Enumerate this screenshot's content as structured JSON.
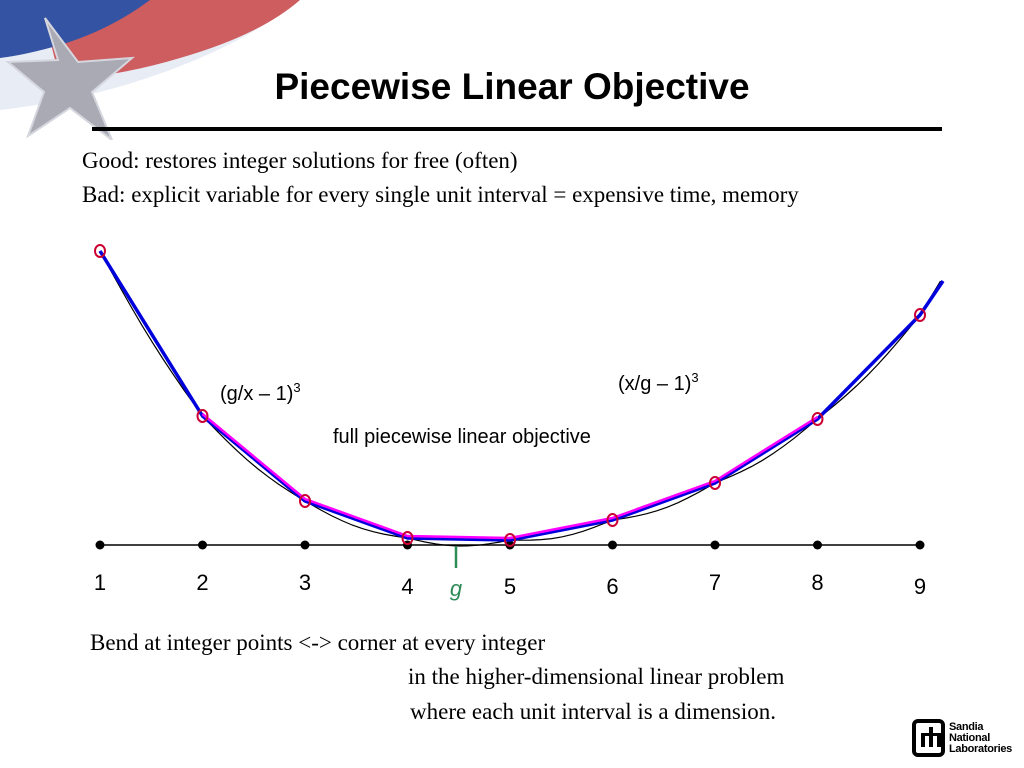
{
  "slide": {
    "title": "Piecewise Linear Objective",
    "bullets": [
      "Good: restores integer solutions for free (often)",
      "Bad: explicit variable for every single unit interval = expensive time, memory"
    ],
    "footer": [
      "Bend at integer points <-> corner at every integer",
      "in the higher-dimensional linear problem",
      "where each unit interval is a dimension."
    ]
  },
  "diagram": {
    "axis_ticks": [
      "1",
      "2",
      "3",
      "4",
      "5",
      "6",
      "7",
      "8",
      "9"
    ],
    "g_label": "g",
    "left_label": "(g/x – 1)",
    "left_label_exp": "3",
    "right_label": "(x/g – 1)",
    "right_label_exp": "3",
    "center_label": "full piecewise linear objective",
    "colors": {
      "curve": "#000000",
      "pwl": "#0000dd",
      "pwl_highlight": "#ff00ff",
      "markers": "#cc0033",
      "g_marker": "#2e8b57"
    }
  },
  "logo": {
    "lines": [
      "Sandia",
      "National",
      "Laboratories"
    ]
  }
}
